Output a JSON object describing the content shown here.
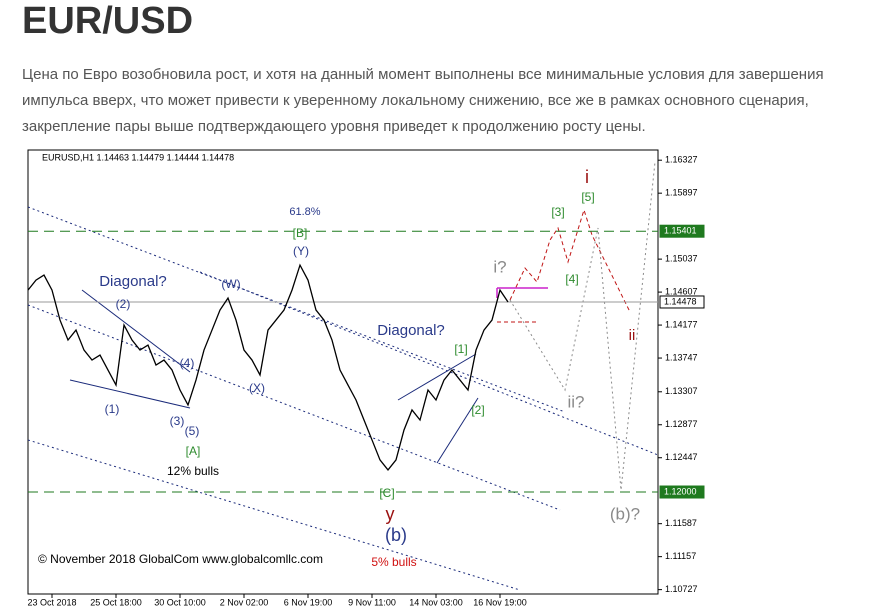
{
  "header": {
    "title": "EUR/USD"
  },
  "paragraph": "Цена по Евро возобновила рост, и хотя на данный момент выполнены все минимальные условия для завершения импульса вверх, что может привести к уверенному локальному снижению, все же в рамках основного сценария, закрепление пары выше подтверждающего уровня приведет к продолжению росту цены.",
  "chart_data": {
    "type": "line",
    "title": "EURUSD,H1  1.14463 1.14479 1.14444 1.14478",
    "categories": [
      null,
      null,
      null,
      "23 Oct 2018",
      null,
      null,
      null,
      null,
      null,
      null,
      null,
      "25 Oct 18:00",
      null,
      null,
      null,
      null,
      null,
      null,
      null,
      "30 Oct 10:00",
      null,
      null,
      null,
      null,
      null,
      null,
      null,
      "2 Nov 02:00",
      null,
      null,
      null,
      null,
      null,
      null,
      null,
      "6 Nov 19:00",
      null,
      null,
      null,
      null,
      null,
      null,
      null,
      "9 Nov 11:00",
      null,
      null,
      null,
      null,
      null,
      null,
      null,
      "14 Nov 03:00",
      null,
      null,
      null,
      null,
      null,
      null,
      null,
      "16 Nov 19:00",
      null
    ],
    "values": [
      1.14633,
      1.14763,
      1.14829,
      1.14633,
      1.14242,
      1.13982,
      1.14112,
      1.13851,
      1.13721,
      1.13786,
      1.13591,
      1.13395,
      1.14177,
      1.13982,
      1.13851,
      1.13916,
      1.13656,
      1.13721,
      1.13591,
      1.1333,
      1.13135,
      1.1346,
      1.13851,
      1.14112,
      1.14373,
      1.14529,
      1.14242,
      1.13851,
      1.13721,
      1.13526,
      1.14112,
      1.14242,
      1.14373,
      1.14633,
      1.14959,
      1.14763,
      1.14373,
      1.14242,
      1.13982,
      1.13591,
      1.13395,
      1.132,
      1.12939,
      1.12679,
      1.12418,
      1.12288,
      1.12418,
      1.12809,
      1.1307,
      1.12939,
      1.1333,
      1.132,
      1.1346,
      1.13591,
      1.1346,
      1.1333,
      1.13851,
      1.14112,
      1.14242,
      1.14633,
      1.14478
    ],
    "color": "#000000",
    "ylim": [
      1.1067,
      1.1646
    ],
    "yticks": [
      1.16327,
      1.15897,
      1.15037,
      1.14607,
      1.14177,
      1.13747,
      1.13307,
      1.12877,
      1.12447,
      1.11587,
      1.11157,
      1.10727
    ],
    "levels": [
      {
        "value": 1.15401,
        "label": "1.15401",
        "color": "#1f7a1f"
      },
      {
        "value": 1.14478,
        "label": "1.14478",
        "color": "#9a9a9a"
      },
      {
        "value": 1.12,
        "label": "1.12000",
        "color": "#1f7a1f"
      }
    ],
    "annotations": [
      "61.8%",
      "[B]",
      "(Y)",
      "Diagonal?",
      "(W)",
      "(2)",
      "(4)",
      "(1)",
      "(3)",
      "(5)",
      "[A]",
      "(X)",
      "12% bulls",
      "Diagonal?",
      "[1]",
      "[2]",
      "[C]",
      "y",
      "(b)",
      "5% bulls",
      "i?",
      "[3]",
      "[4]",
      "[5]",
      "i",
      "ii",
      "ii?",
      "(b)?",
      "© November 2018 GlobalCom www.globalcomllc.com"
    ]
  }
}
